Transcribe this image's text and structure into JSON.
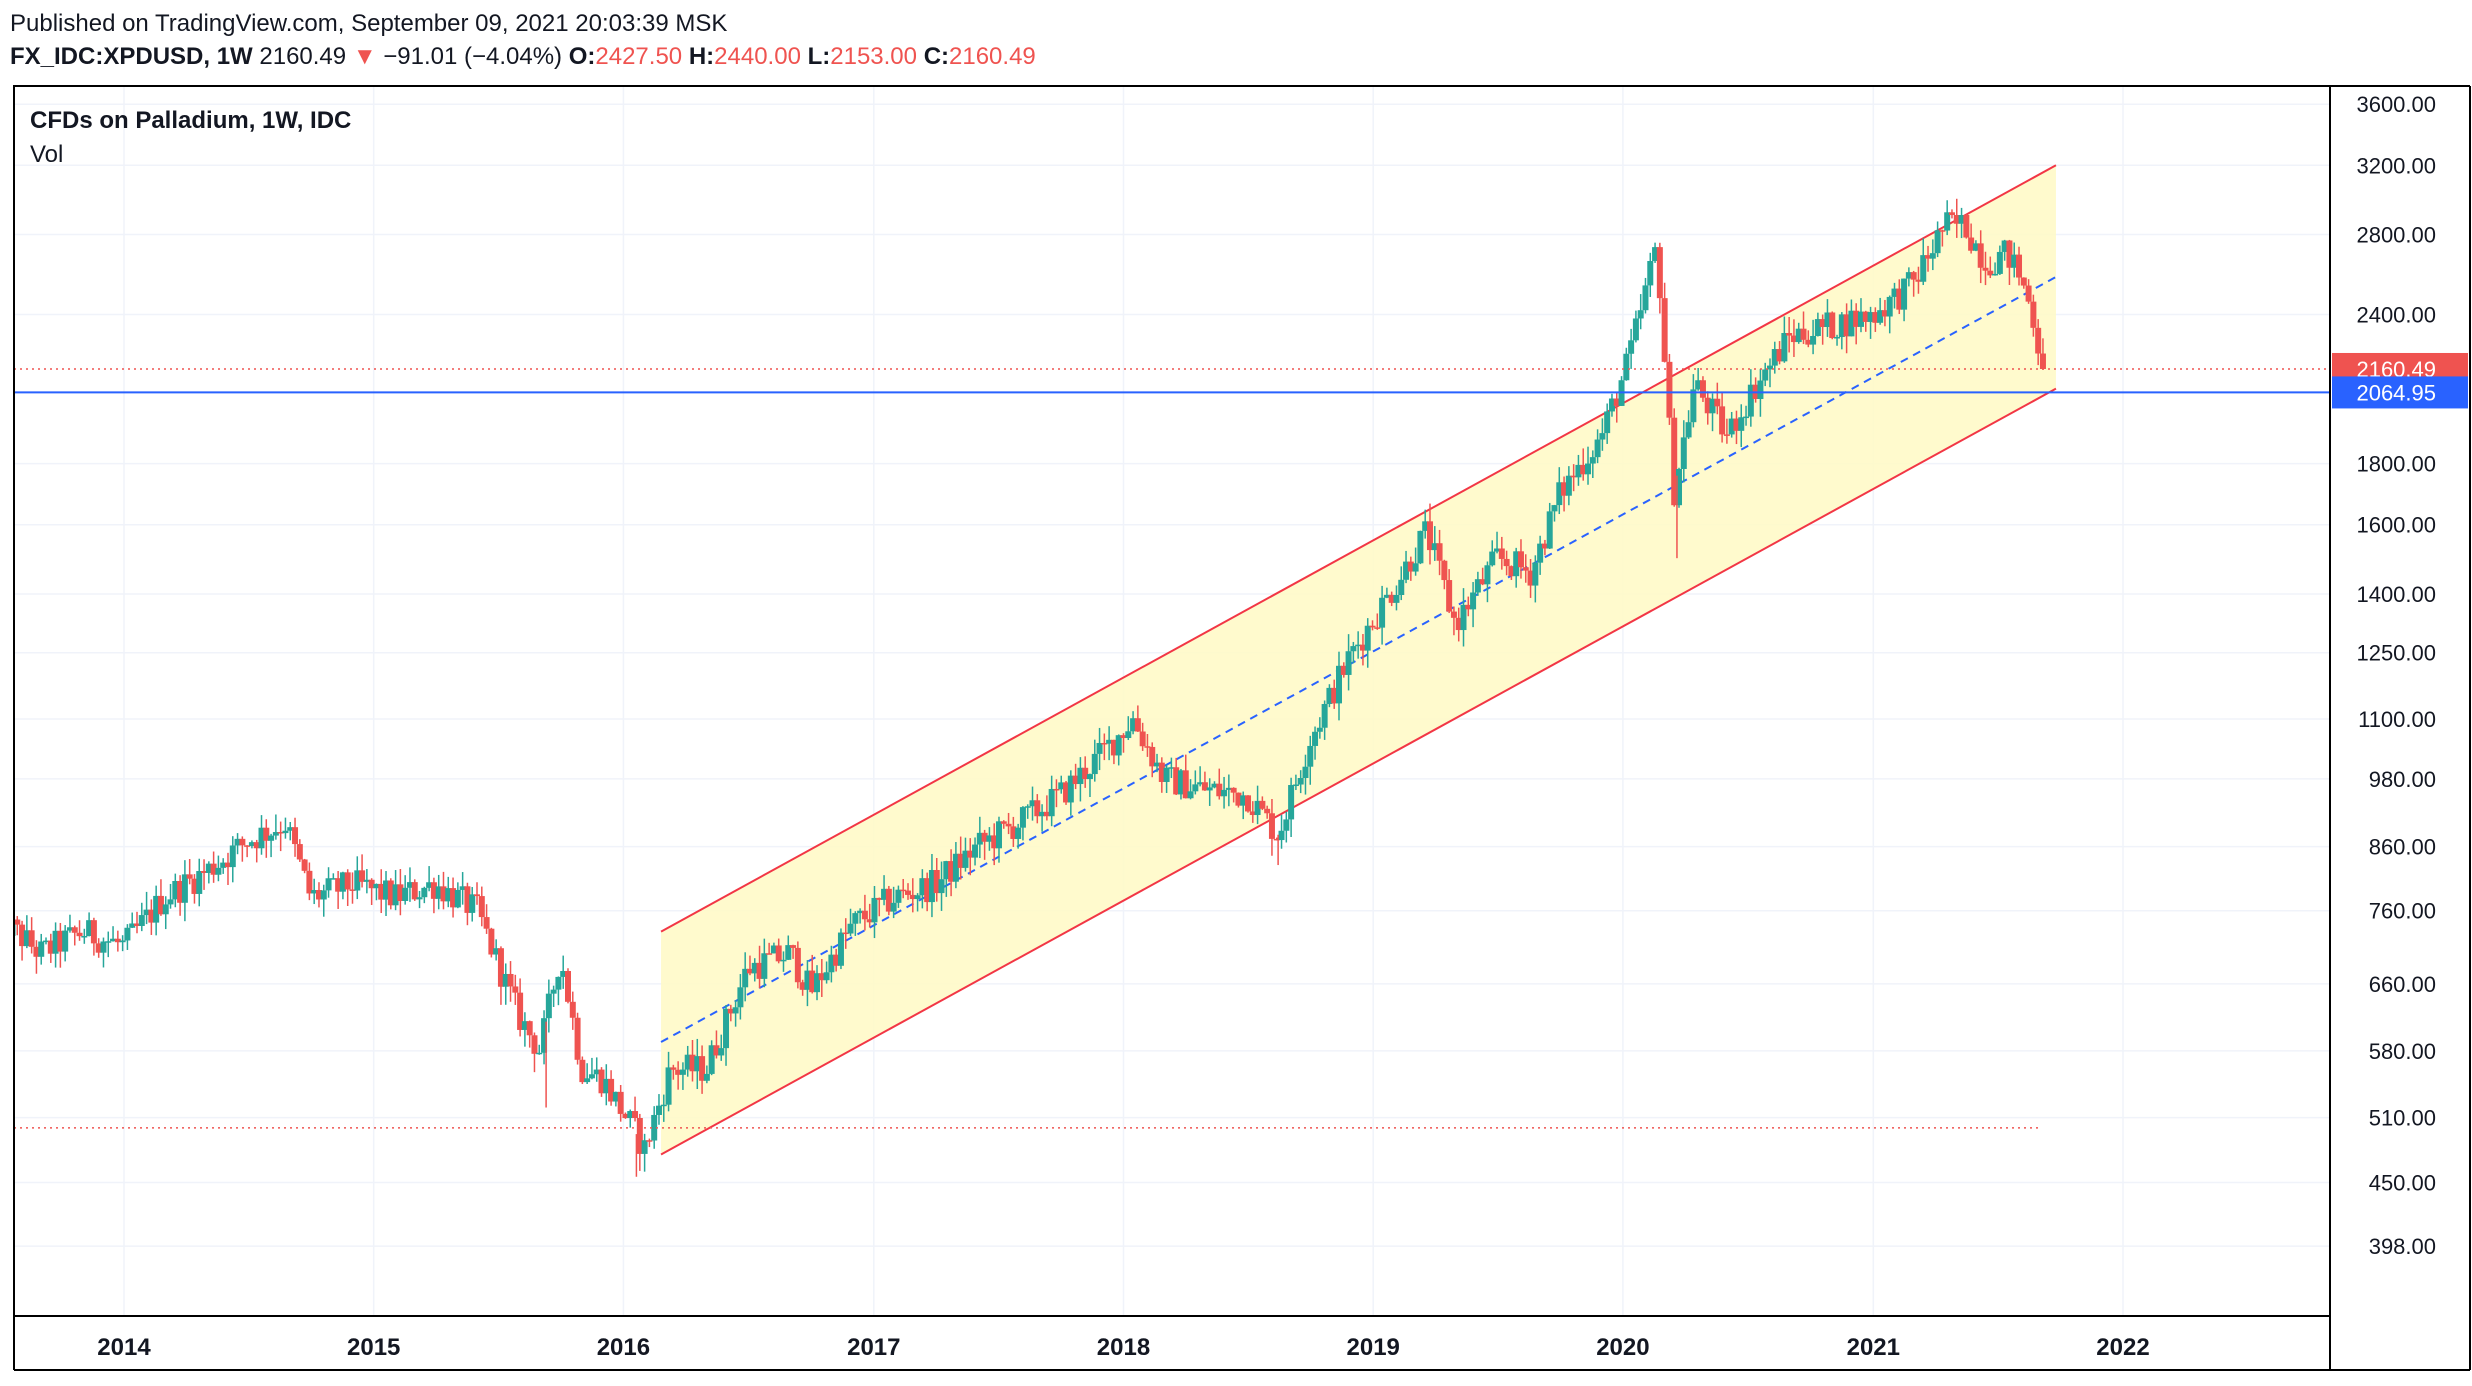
{
  "header": {
    "published": "Published on TradingView.com, September 09, 2021 20:03:39 MSK",
    "symbol": "FX_IDC:XPDUSD, 1W",
    "price": "2160.49",
    "down_arrow": "▼",
    "change": "−91.01 (−4.04%)",
    "o_label": "O:",
    "o_value": "2427.50",
    "h_label": "H:",
    "h_value": "2440.00",
    "l_label": "L:",
    "l_value": "2153.00",
    "c_label": "C:",
    "c_value": "2160.49"
  },
  "legend": {
    "title": "CFDs on Palladium, 1W, IDC",
    "vol": "Vol"
  },
  "colors": {
    "up": "#26a69a",
    "down": "#ef5350",
    "channel": "#f23645",
    "channel_fill": "#fff9c4",
    "median": "#2962ff",
    "hline": "#2962ff",
    "grid": "#f0f3fa",
    "border": "#000000",
    "text": "#131722"
  },
  "chart_data": {
    "type": "candlestick",
    "title": "CFDs on Palladium, 1W, IDC",
    "y_scale": "log",
    "ylim": [
      370,
      3700
    ],
    "y_ticks": [
      398,
      450,
      510,
      580,
      660,
      760,
      860,
      980,
      1100,
      1250,
      1400,
      1600,
      1800,
      2400,
      2800,
      3200,
      3600
    ],
    "y_tick_labels": [
      "398.00",
      "450.00",
      "510.00",
      "580.00",
      "660.00",
      "760.00",
      "860.00",
      "980.00",
      "1100.00",
      "1250.00",
      "1400.00",
      "1600.00",
      "1800.00",
      "2400.00",
      "2800.00",
      "3200.00",
      "3600.00"
    ],
    "x_ticks": [
      "2014",
      "2015",
      "2016",
      "2017",
      "2018",
      "2019",
      "2020",
      "2021",
      "2022"
    ],
    "price_path": [
      [
        "2013-07-01",
        750
      ],
      [
        "2013-09-01",
        700
      ],
      [
        "2013-11-01",
        730
      ],
      [
        "2014-01-01",
        710
      ],
      [
        "2014-03-01",
        780
      ],
      [
        "2014-05-01",
        820
      ],
      [
        "2014-07-01",
        870
      ],
      [
        "2014-08-25",
        900
      ],
      [
        "2014-10-01",
        780
      ],
      [
        "2014-12-01",
        800
      ],
      [
        "2015-02-01",
        780
      ],
      [
        "2015-04-01",
        800
      ],
      [
        "2015-06-01",
        760
      ],
      [
        "2015-08-01",
        620
      ],
      [
        "2015-09-01",
        580
      ],
      [
        "2015-10-01",
        700
      ],
      [
        "2015-11-01",
        560
      ],
      [
        "2015-12-01",
        550
      ],
      [
        "2016-01-15",
        500
      ],
      [
        "2016-02-01",
        480
      ],
      [
        "2016-03-10",
        560
      ],
      [
        "2016-05-01",
        560
      ],
      [
        "2016-07-01",
        680
      ],
      [
        "2016-09-01",
        700
      ],
      [
        "2016-10-01",
        650
      ],
      [
        "2016-12-01",
        740
      ],
      [
        "2017-02-01",
        780
      ],
      [
        "2017-04-01",
        800
      ],
      [
        "2017-06-01",
        860
      ],
      [
        "2017-08-01",
        900
      ],
      [
        "2017-10-01",
        950
      ],
      [
        "2017-12-01",
        1030
      ],
      [
        "2018-01-15",
        1100
      ],
      [
        "2018-03-01",
        980
      ],
      [
        "2018-05-01",
        960
      ],
      [
        "2018-07-01",
        950
      ],
      [
        "2018-08-15",
        880
      ],
      [
        "2018-10-01",
        1060
      ],
      [
        "2018-12-01",
        1250
      ],
      [
        "2019-02-01",
        1420
      ],
      [
        "2019-03-20",
        1580
      ],
      [
        "2019-05-01",
        1320
      ],
      [
        "2019-07-01",
        1500
      ],
      [
        "2019-08-20",
        1460
      ],
      [
        "2019-10-01",
        1700
      ],
      [
        "2019-12-01",
        1900
      ],
      [
        "2020-01-10",
        2200
      ],
      [
        "2020-02-20",
        2750
      ],
      [
        "2020-03-15",
        1700
      ],
      [
        "2020-04-15",
        2100
      ],
      [
        "2020-06-01",
        1900
      ],
      [
        "2020-07-15",
        2100
      ],
      [
        "2020-09-01",
        2300
      ],
      [
        "2020-11-01",
        2350
      ],
      [
        "2021-01-01",
        2400
      ],
      [
        "2021-03-01",
        2550
      ],
      [
        "2021-04-15",
        2850
      ],
      [
        "2021-05-15",
        2850
      ],
      [
        "2021-06-15",
        2650
      ],
      [
        "2021-07-15",
        2700
      ],
      [
        "2021-08-01",
        2600
      ],
      [
        "2021-08-20",
        2430
      ],
      [
        "2021-09-06",
        2160.49
      ]
    ],
    "spikes": [
      {
        "date": "2016-01-20",
        "low": 455
      },
      {
        "date": "2015-09-10",
        "low": 520
      },
      {
        "date": "2018-08-15",
        "low": 830
      },
      {
        "date": "2020-03-20",
        "low": 1500
      }
    ],
    "channel": {
      "upper": [
        [
          "2016-02-25",
          730
        ],
        [
          "2021-09-25",
          3200
        ]
      ],
      "lower": [
        [
          "2016-02-25",
          475
        ],
        [
          "2021-09-25",
          2080
        ]
      ],
      "median": [
        [
          "2016-02-25",
          590
        ],
        [
          "2021-09-25",
          2580
        ]
      ]
    },
    "current_price": {
      "value": 2160.49,
      "label": "2160.49"
    },
    "horizontal_line": {
      "value": 2064.95,
      "label": "2064.95"
    },
    "low_marker": {
      "value": 500,
      "end_date": "2021-09-01"
    }
  }
}
